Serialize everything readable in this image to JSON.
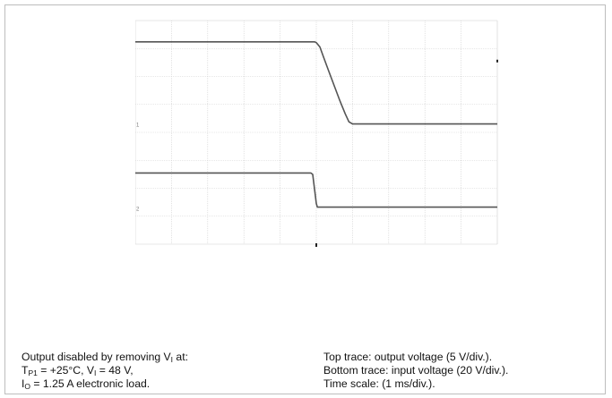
{
  "chart_data": {
    "type": "line",
    "title": "",
    "xlabel": "",
    "ylabel": "",
    "x_unit_per_div": "1 ms/div.",
    "xlim": [
      0,
      10
    ],
    "grid": true,
    "series": [
      {
        "name": "Top trace: output voltage",
        "scale": "5 V/div.",
        "x": [
          0,
          4.95,
          5.0,
          5.1,
          5.2,
          5.35,
          5.5,
          5.65,
          5.8,
          5.9,
          6.0,
          10
        ],
        "y": [
          5.65,
          5.65,
          5.6,
          5.3,
          4.6,
          3.6,
          2.6,
          1.6,
          0.7,
          0.15,
          0,
          0
        ]
      },
      {
        "name": "Bottom trace: input voltage",
        "scale": "20 V/div.",
        "x": [
          0,
          4.85,
          4.9,
          5.0,
          5.03,
          10
        ],
        "y": [
          2.4,
          2.4,
          2.3,
          0.3,
          0.05,
          0.05
        ]
      }
    ],
    "markers": {
      "ch1_ground": "1",
      "ch2_ground": "2"
    },
    "colors": {
      "trace": "#555555",
      "grid": "#cfcfcf",
      "trigger_marker": "#222222"
    }
  },
  "caption_left": {
    "line1_prefix": "Output disabled by removing V",
    "line1_sub": "I",
    "line1_suffix": " at:",
    "line2_a": "T",
    "line2_a_sub": "P1",
    "line2_b": " = +25°C, V",
    "line2_b_sub": "I",
    "line2_c": " = 48 V,",
    "line3_a": "I",
    "line3_a_sub": "O",
    "line3_b": " = 1.25 A electronic load."
  },
  "caption_right": {
    "line1": "Top trace: output voltage (5 V/div.).",
    "line2": "Bottom trace: input voltage (20 V/div.).",
    "line3": "Time scale: (1 ms/div.)."
  }
}
